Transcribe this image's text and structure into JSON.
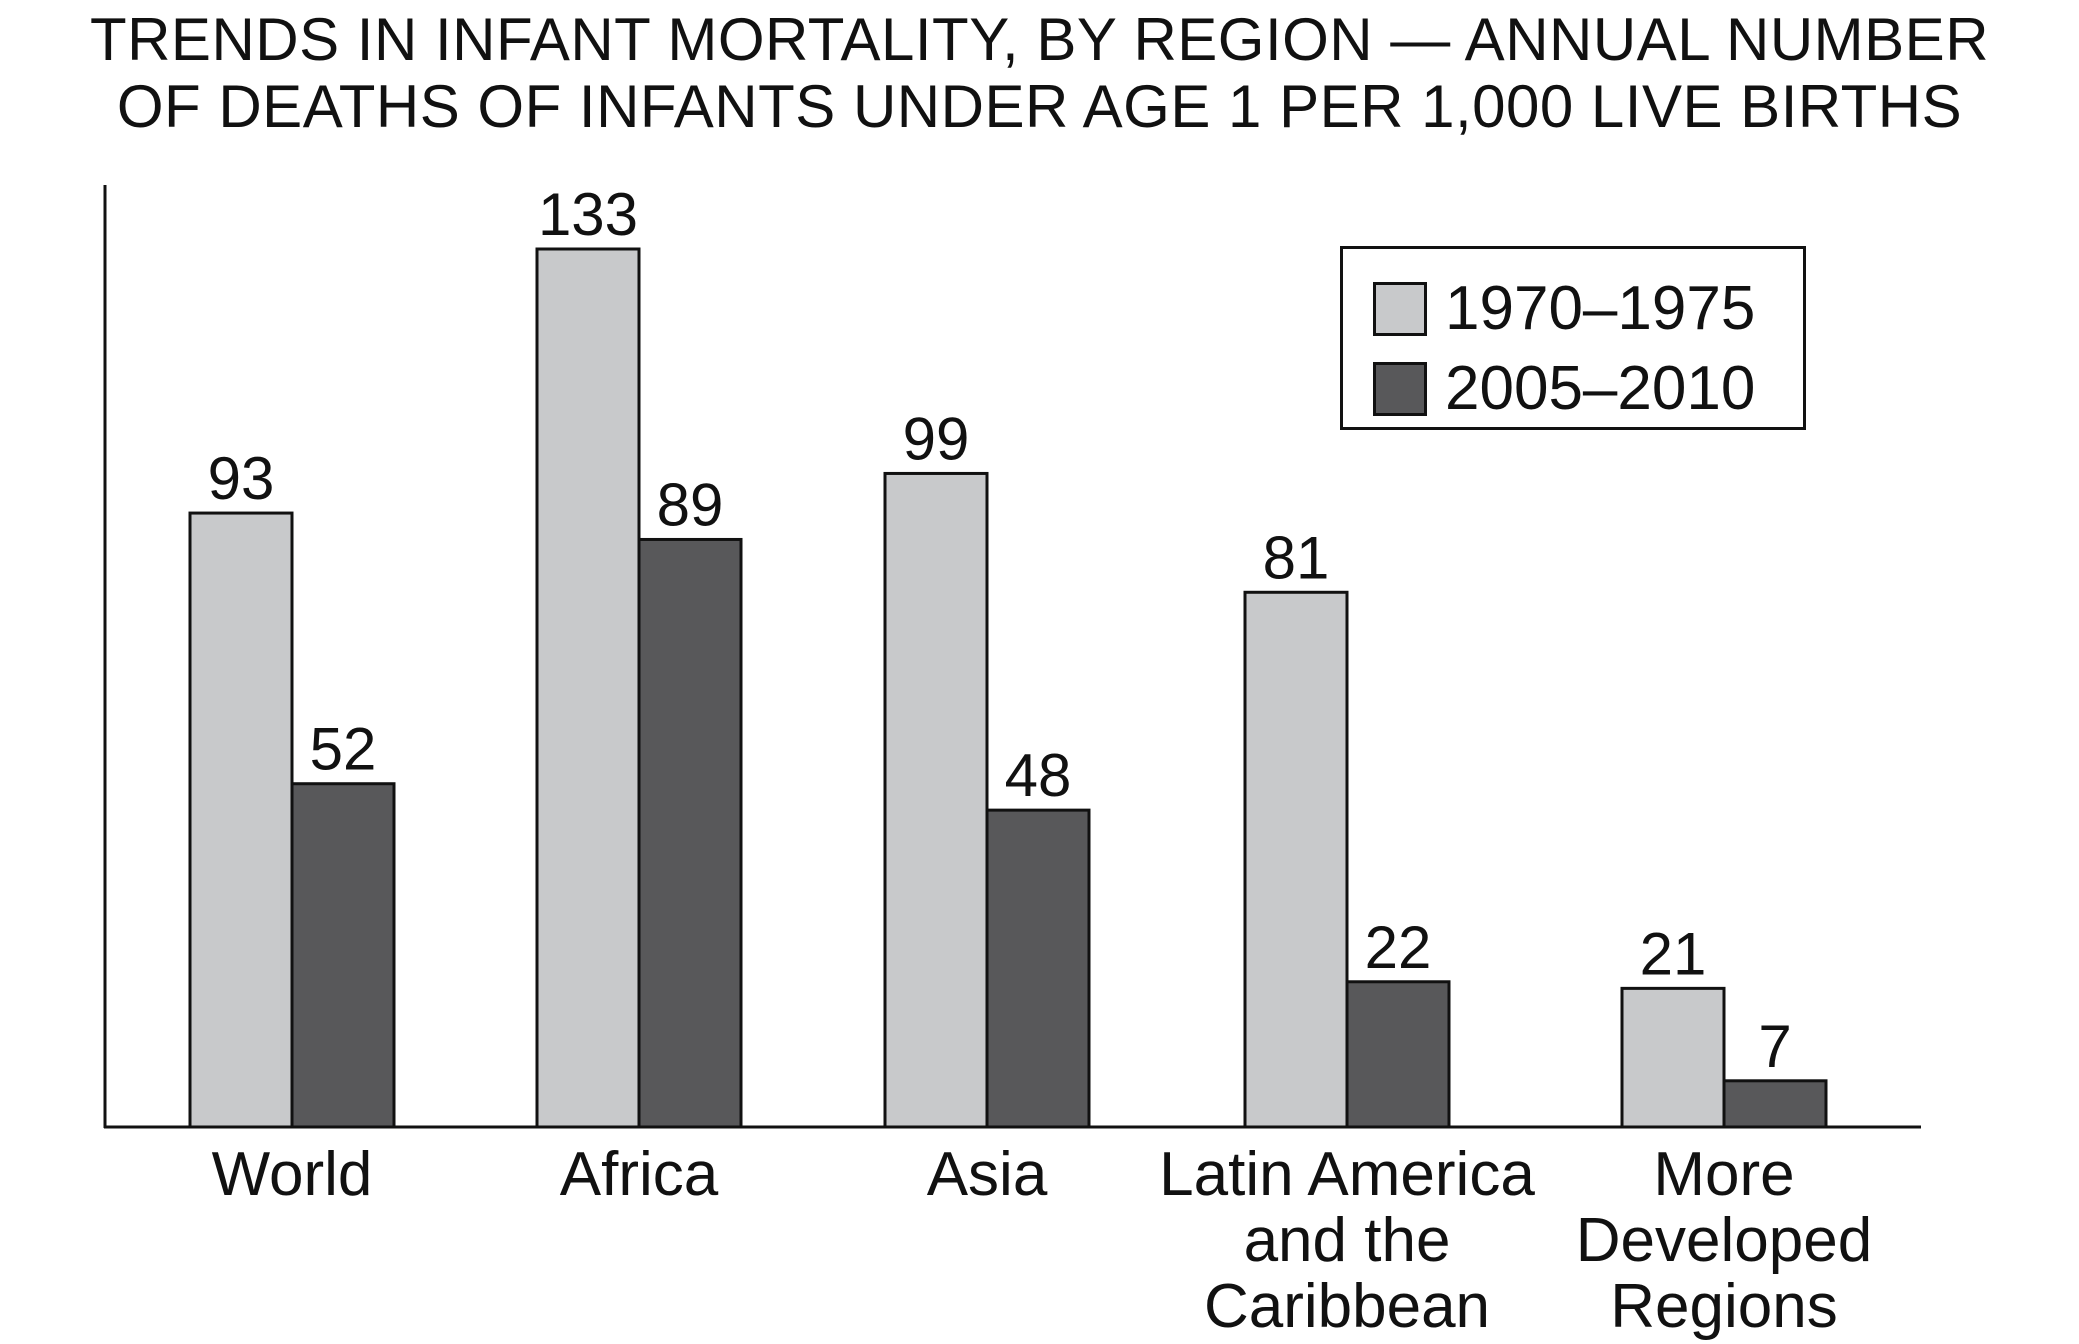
{
  "chart_data": {
    "type": "bar",
    "title_lines": [
      "TRENDS IN INFANT MORTALITY, BY REGION — ANNUAL NUMBER",
      "OF DEATHS OF INFANTS UNDER AGE 1 PER 1,000 LIVE BIRTHS"
    ],
    "categories": [
      [
        "World"
      ],
      [
        "Africa"
      ],
      [
        "Asia"
      ],
      [
        "Latin America",
        "and the",
        "Caribbean"
      ],
      [
        "More",
        "Developed",
        "Regions"
      ]
    ],
    "series": [
      {
        "name": "1970–1975",
        "values": [
          93,
          133,
          99,
          81,
          21
        ],
        "color": "#c8c9cb"
      },
      {
        "name": "2005–2010",
        "values": [
          52,
          89,
          48,
          22,
          7
        ],
        "color": "#58585a"
      }
    ],
    "ylim": [
      0,
      133
    ],
    "grid": false,
    "legend_position": "top-right",
    "data_labels": true,
    "axis_color": "#111111"
  }
}
